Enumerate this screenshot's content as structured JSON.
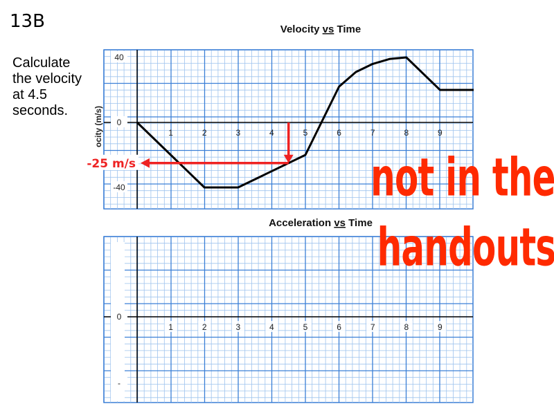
{
  "slide": {
    "label": "13B",
    "question": "Calculate the velocity at 4.5 seconds."
  },
  "answer": {
    "text": "-25 m/s",
    "color": "#ee2222"
  },
  "stamp": {
    "line1": "not in the",
    "line2": "handouts",
    "color": "#ff2a00"
  },
  "colors": {
    "grid_minor": "#9ec3ee",
    "grid_major": "#3b7fd6",
    "line": "#000000",
    "annotation": "#ee2222"
  },
  "chart_data": [
    {
      "type": "line",
      "title": "Velocity vs Time",
      "title_underlined_word": "vs",
      "ylabel": "ocity (m/s)",
      "xlim": [
        0,
        10
      ],
      "ylim": [
        -50,
        50
      ],
      "x_ticks": [
        "1",
        "2",
        "3",
        "4",
        "5",
        "6",
        "7",
        "8",
        "9"
      ],
      "y_ticks": [
        {
          "value": 40,
          "label": "40"
        },
        {
          "value": 0,
          "label": "0"
        },
        {
          "value": -40,
          "label": "-40"
        }
      ],
      "grid": true,
      "series": [
        {
          "points": [
            [
              0,
              0
            ],
            [
              2,
              -40
            ],
            [
              3,
              -40
            ],
            [
              5,
              -20
            ],
            [
              6,
              22
            ],
            [
              6.5,
              31
            ],
            [
              7,
              36
            ],
            [
              7.5,
              39
            ],
            [
              8,
              40
            ],
            [
              9,
              20
            ],
            [
              10,
              20
            ]
          ]
        }
      ],
      "annotation": {
        "x": 4.5,
        "y": -25,
        "label": "-25 m/s"
      }
    },
    {
      "type": "line",
      "title": "Acceleration vs Time",
      "title_underlined_word": "vs",
      "xlim": [
        0,
        10
      ],
      "ylim": [
        -2,
        2
      ],
      "x_ticks": [
        "1",
        "2",
        "3",
        "4",
        "5",
        "6",
        "7",
        "8",
        "9"
      ],
      "y_ticks": [
        {
          "value": 0,
          "label": "0"
        },
        {
          "value": -2,
          "label": "-"
        }
      ],
      "grid": true,
      "series": []
    }
  ]
}
